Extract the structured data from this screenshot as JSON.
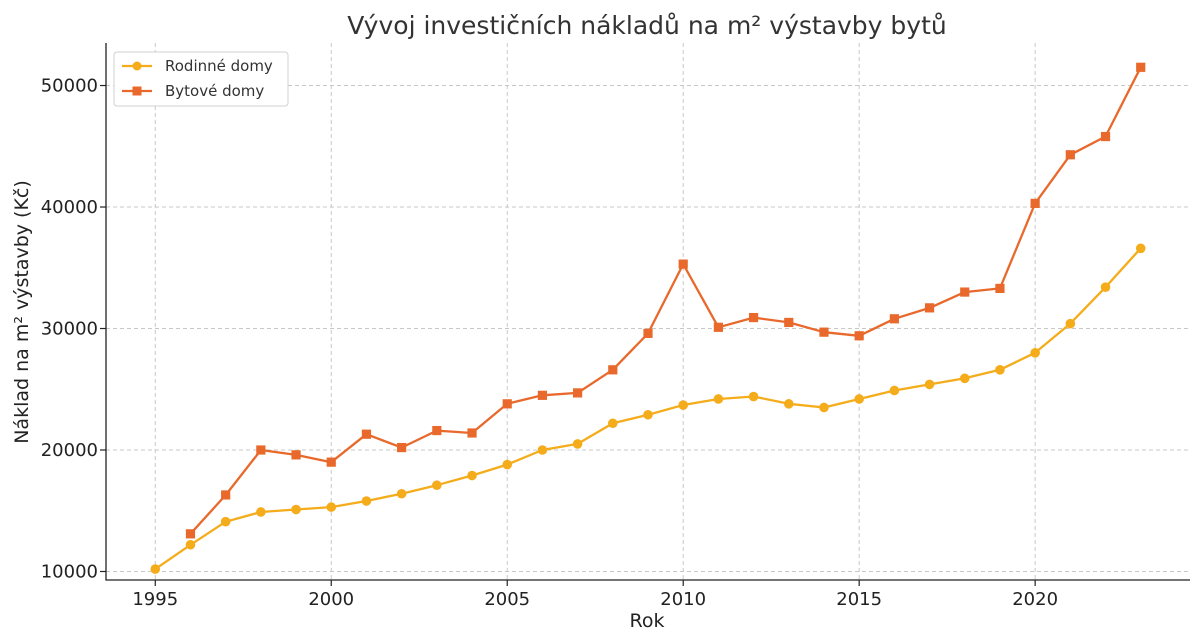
{
  "chart_data": {
    "type": "line",
    "title": "Vývoj investičních nákladů na m² výstavby bytů",
    "xlabel": "Rok",
    "ylabel": "Náklad na m² výstavby (Kč)",
    "xlim": [
      1993.6,
      2024.4
    ],
    "ylim": [
      9300,
      53500
    ],
    "xticks": [
      1995,
      2000,
      2005,
      2010,
      2015,
      2020
    ],
    "yticks": [
      10000,
      20000,
      30000,
      40000,
      50000
    ],
    "grid": true,
    "legend_position": "top-left",
    "series": [
      {
        "name": "Rodinné domy",
        "color": "#f5ac1b",
        "marker": "circle",
        "x": [
          1995,
          1996,
          1997,
          1998,
          1999,
          2000,
          2001,
          2002,
          2003,
          2004,
          2005,
          2006,
          2007,
          2008,
          2009,
          2010,
          2011,
          2012,
          2013,
          2014,
          2015,
          2016,
          2017,
          2018,
          2019,
          2020,
          2021,
          2022,
          2023
        ],
        "values": [
          10200,
          12200,
          14100,
          14900,
          15100,
          15300,
          15800,
          16400,
          17100,
          17900,
          18800,
          20000,
          20500,
          22200,
          22900,
          23700,
          24200,
          24400,
          23800,
          23500,
          24200,
          24900,
          25400,
          25900,
          26600,
          28000,
          30400,
          33400,
          36600
        ]
      },
      {
        "name": "Bytové domy",
        "color": "#e8692b",
        "marker": "square",
        "x": [
          1996,
          1997,
          1998,
          1999,
          2000,
          2001,
          2002,
          2003,
          2004,
          2005,
          2006,
          2007,
          2008,
          2009,
          2010,
          2011,
          2012,
          2013,
          2014,
          2015,
          2016,
          2017,
          2018,
          2019,
          2020,
          2021,
          2022,
          2023
        ],
        "values": [
          13100,
          16300,
          20000,
          19600,
          19000,
          21300,
          20200,
          21600,
          21400,
          23800,
          24500,
          24700,
          26600,
          29600,
          35300,
          30100,
          30900,
          30500,
          29700,
          29400,
          30800,
          31700,
          33000,
          33300,
          40300,
          44300,
          45800,
          51500
        ]
      }
    ]
  }
}
